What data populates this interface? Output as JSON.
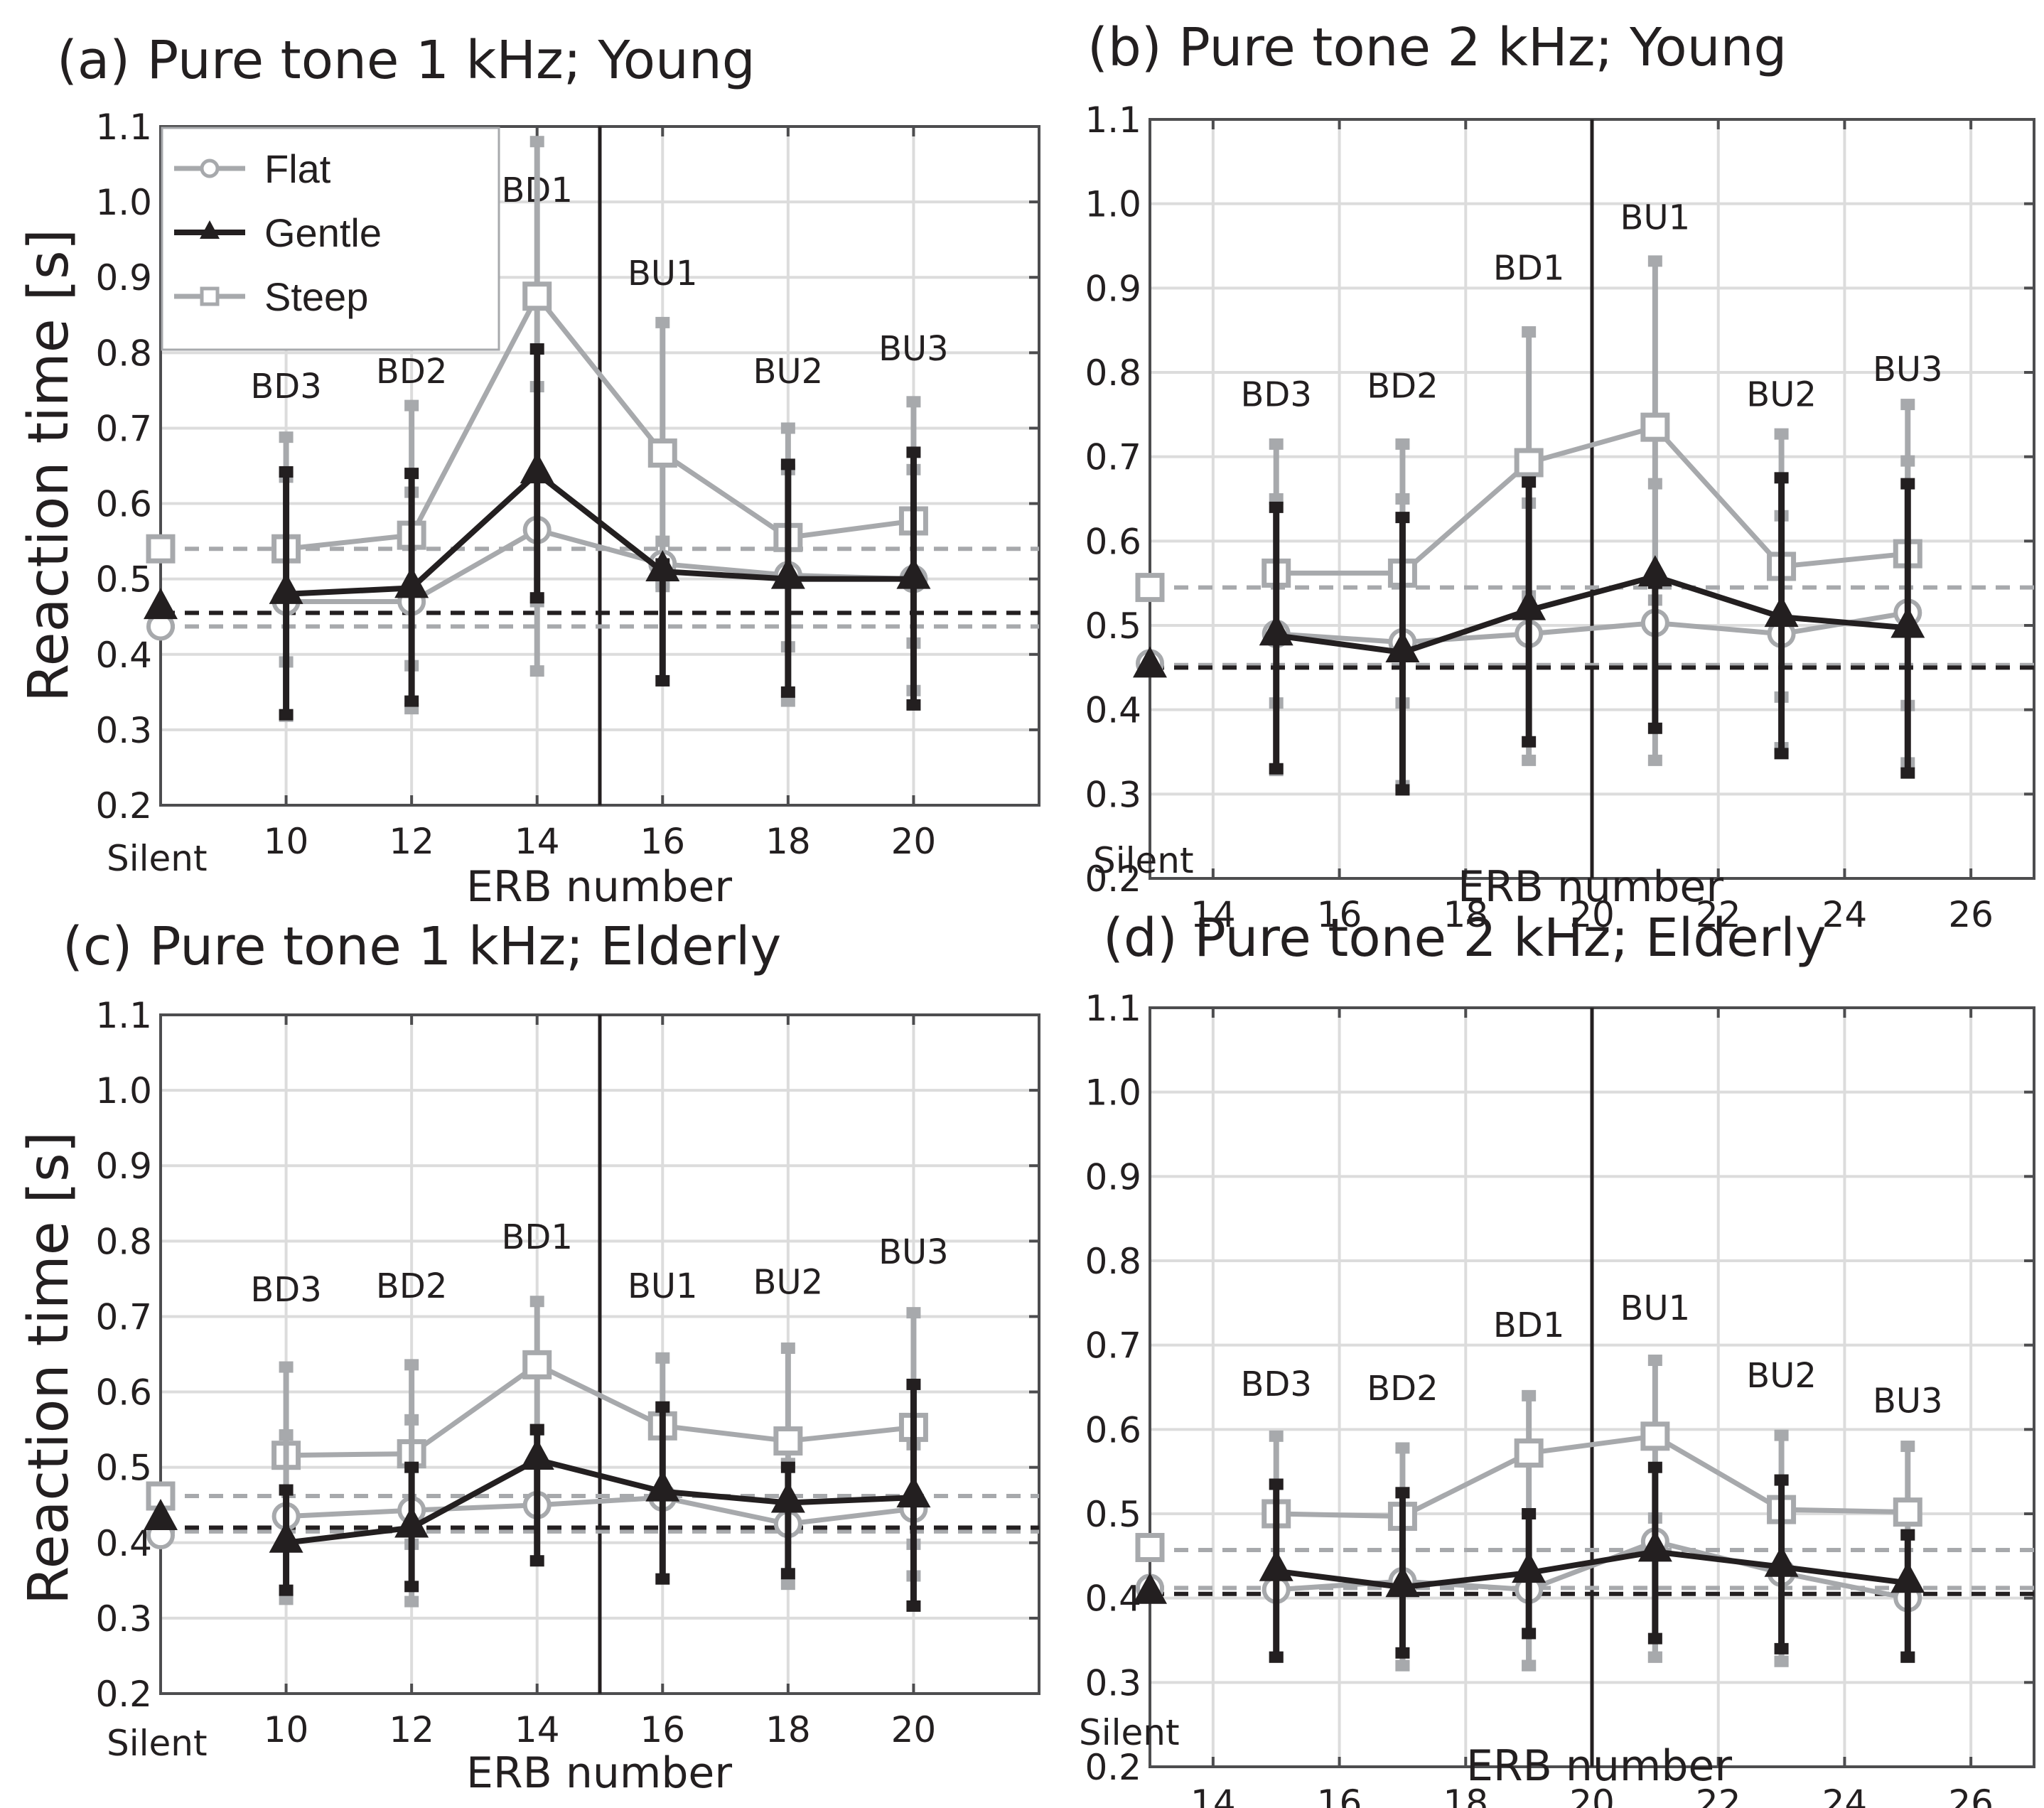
{
  "figure": {
    "ylabel": "Reaction time [s]",
    "xlabel": "ERB  number",
    "legend": [
      {
        "name": "Flat",
        "marker": "circle-open",
        "color": "#a7a9ac"
      },
      {
        "name": "Gentle",
        "marker": "triangle-filled",
        "color": "#231f20"
      },
      {
        "name": "Steep",
        "marker": "square-open",
        "color": "#a7a9ac"
      }
    ],
    "colors": {
      "gray": "#a7a9ac",
      "black": "#231f20",
      "grid": "#dcdcdc",
      "axis": "#4d4d4f"
    }
  },
  "chart_data": [
    {
      "id": "a",
      "type": "line",
      "title": "(a) Pure tone 1 kHz; Young",
      "xlabel": "ERB  number",
      "ylabel": "Reaction time [s]",
      "silent_label": "Silent",
      "xlim": [
        8,
        22
      ],
      "ylim": [
        0.2,
        1.1
      ],
      "xticks": [
        10,
        12,
        14,
        16,
        18,
        20
      ],
      "yticks": [
        "0.2",
        "0.3",
        "0.4",
        "0.5",
        "0.6",
        "0.7",
        "0.8",
        "0.9",
        "1.0",
        "1.1"
      ],
      "divider_x": 15,
      "grid": true,
      "legend": "top-left",
      "x": [
        8,
        10,
        12,
        14,
        16,
        18,
        20
      ],
      "annotations": [
        {
          "text": "BD3",
          "x": 10,
          "y": 0.74
        },
        {
          "text": "BD2",
          "x": 12,
          "y": 0.76
        },
        {
          "text": "BD1",
          "x": 14,
          "y": 1.0
        },
        {
          "text": "BU1",
          "x": 16,
          "y": 0.89
        },
        {
          "text": "BU2",
          "x": 18,
          "y": 0.76
        },
        {
          "text": "BU3",
          "x": 20,
          "y": 0.79
        }
      ],
      "series": [
        {
          "name": "Flat",
          "values": [
            0.437,
            0.47,
            0.47,
            0.565,
            0.52,
            0.505,
            0.5
          ],
          "lower": [
            null,
            0.39,
            0.385,
            0.47,
            0.49,
            0.41,
            0.415
          ],
          "upper": [
            null,
            0.635,
            0.615,
            0.755,
            0.55,
            0.645,
            0.645
          ],
          "baseline": 0.437
        },
        {
          "name": "Gentle",
          "values": [
            0.46,
            0.48,
            0.488,
            0.64,
            0.51,
            0.5,
            0.5
          ],
          "lower": [
            null,
            0.32,
            0.338,
            0.475,
            0.365,
            0.35,
            0.333
          ],
          "upper": [
            null,
            0.642,
            0.64,
            0.805,
            0.52,
            0.652,
            0.668
          ],
          "baseline": 0.455
        },
        {
          "name": "Steep",
          "values": [
            0.54,
            0.54,
            0.558,
            0.875,
            0.667,
            0.555,
            0.577
          ],
          "lower": [
            null,
            0.318,
            0.328,
            0.378,
            0.495,
            0.338,
            0.352
          ],
          "upper": [
            null,
            0.688,
            0.73,
            1.08,
            0.84,
            0.7,
            0.735
          ],
          "baseline": 0.54
        }
      ]
    },
    {
      "id": "b",
      "type": "line",
      "title": "(b) Pure tone 2 kHz; Young",
      "xlabel": "ERB  number",
      "ylabel": "",
      "silent_label": "Silent",
      "xlim": [
        13,
        27
      ],
      "ylim": [
        0.2,
        1.1
      ],
      "xticks": [
        14,
        16,
        18,
        20,
        22,
        24,
        26
      ],
      "yticks": [
        "0.2",
        "0.3",
        "0.4",
        "0.5",
        "0.6",
        "0.7",
        "0.8",
        "0.9",
        "1.0",
        "1.1"
      ],
      "divider_x": 20,
      "grid": true,
      "x": [
        13,
        15,
        17,
        19,
        21,
        23,
        25
      ],
      "annotations": [
        {
          "text": "BD3",
          "x": 15,
          "y": 0.76
        },
        {
          "text": "BD2",
          "x": 17,
          "y": 0.77
        },
        {
          "text": "BD1",
          "x": 19,
          "y": 0.91
        },
        {
          "text": "BU1",
          "x": 21,
          "y": 0.97
        },
        {
          "text": "BU2",
          "x": 23,
          "y": 0.76
        },
        {
          "text": "BU3",
          "x": 25,
          "y": 0.79
        }
      ],
      "series": [
        {
          "name": "Flat",
          "values": [
            0.455,
            0.49,
            0.48,
            0.49,
            0.503,
            0.49,
            0.515
          ],
          "lower": [
            null,
            0.408,
            0.408,
            0.535,
            0.53,
            0.415,
            0.405
          ],
          "upper": [
            null,
            0.65,
            0.65,
            0.645,
            0.668,
            0.63,
            0.695
          ],
          "baseline": 0.453
        },
        {
          "name": "Gentle",
          "values": [
            0.45,
            0.488,
            0.468,
            0.518,
            0.558,
            0.51,
            0.497
          ],
          "lower": [
            null,
            0.33,
            0.305,
            0.362,
            0.378,
            0.348,
            0.325
          ],
          "upper": [
            null,
            0.64,
            0.628,
            0.67,
            0.55,
            0.675,
            0.668
          ],
          "baseline": 0.45
        },
        {
          "name": "Steep",
          "values": [
            0.545,
            0.562,
            0.562,
            0.693,
            0.735,
            0.57,
            0.585
          ],
          "lower": [
            null,
            0.328,
            0.31,
            0.34,
            0.34,
            0.355,
            0.337
          ],
          "upper": [
            null,
            0.715,
            0.715,
            0.848,
            0.932,
            0.727,
            0.762
          ],
          "baseline": 0.545
        }
      ]
    },
    {
      "id": "c",
      "type": "line",
      "title": "(c) Pure tone 1 kHz; Elderly",
      "xlabel": "ERB  number",
      "ylabel": "Reaction time [s]",
      "silent_label": "Silent",
      "xlim": [
        8,
        22
      ],
      "ylim": [
        0.2,
        1.1
      ],
      "xticks": [
        10,
        12,
        14,
        16,
        18,
        20
      ],
      "yticks": [
        "0.2",
        "0.3",
        "0.4",
        "0.5",
        "0.6",
        "0.7",
        "0.8",
        "0.9",
        "1.0",
        "1.1"
      ],
      "divider_x": 15,
      "grid": true,
      "x": [
        8,
        10,
        12,
        14,
        16,
        18,
        20
      ],
      "annotations": [
        {
          "text": "BD3",
          "x": 10,
          "y": 0.72
        },
        {
          "text": "BD2",
          "x": 12,
          "y": 0.725
        },
        {
          "text": "BD1",
          "x": 14,
          "y": 0.79
        },
        {
          "text": "BU1",
          "x": 16,
          "y": 0.725
        },
        {
          "text": "BU2",
          "x": 18,
          "y": 0.73
        },
        {
          "text": "BU3",
          "x": 20,
          "y": 0.77
        }
      ],
      "series": [
        {
          "name": "Flat",
          "values": [
            0.41,
            0.435,
            0.443,
            0.45,
            0.46,
            0.425,
            0.445
          ],
          "lower": [
            null,
            0.4,
            0.398,
            0.55,
            0.465,
            0.505,
            0.398
          ],
          "upper": [
            null,
            0.543,
            0.563,
            0.55,
            0.58,
            0.505,
            0.53
          ],
          "baseline": 0.415
        },
        {
          "name": "Gentle",
          "values": [
            0.43,
            0.4,
            0.42,
            0.51,
            0.468,
            0.453,
            0.46
          ],
          "lower": [
            null,
            0.337,
            0.342,
            0.376,
            0.352,
            0.359,
            0.316
          ],
          "upper": [
            null,
            0.47,
            0.5,
            0.55,
            0.58,
            0.5,
            0.61
          ],
          "baseline": 0.42
        },
        {
          "name": "Steep",
          "values": [
            0.462,
            0.516,
            0.518,
            0.636,
            0.555,
            0.535,
            0.553
          ],
          "lower": [
            null,
            0.325,
            0.322,
            0.55,
            0.465,
            0.345,
            0.356
          ],
          "upper": [
            null,
            0.633,
            0.636,
            0.72,
            0.645,
            0.658,
            0.705
          ],
          "baseline": 0.462
        }
      ]
    },
    {
      "id": "d",
      "type": "line",
      "title": "(d) Pure tone 2 kHz; Elderly",
      "xlabel": "ERB  number",
      "ylabel": "",
      "silent_label": "Silent",
      "xlim": [
        13,
        27
      ],
      "ylim": [
        0.2,
        1.1
      ],
      "xticks": [
        14,
        16,
        18,
        20,
        22,
        24,
        26
      ],
      "yticks": [
        "0.2",
        "0.3",
        "0.4",
        "0.5",
        "0.6",
        "0.7",
        "0.8",
        "0.9",
        "1.0",
        "1.1"
      ],
      "divider_x": 20,
      "grid": true,
      "x": [
        13,
        15,
        17,
        19,
        21,
        23,
        25
      ],
      "annotations": [
        {
          "text": "BD3",
          "x": 15,
          "y": 0.64
        },
        {
          "text": "BD2",
          "x": 17,
          "y": 0.635
        },
        {
          "text": "BD1",
          "x": 19,
          "y": 0.71
        },
        {
          "text": "BU1",
          "x": 21,
          "y": 0.73
        },
        {
          "text": "BU2",
          "x": 23,
          "y": 0.65
        },
        {
          "text": "BU3",
          "x": 25,
          "y": 0.62
        }
      ],
      "series": [
        {
          "name": "Flat",
          "values": [
            0.412,
            0.41,
            0.42,
            0.41,
            0.467,
            0.43,
            0.4
          ],
          "lower": [
            null,
            0.33,
            0.32,
            0.32,
            0.33,
            0.325,
            0.33
          ],
          "upper": [
            null,
            0.535,
            0.525,
            0.5,
            0.495,
            0.54,
            0.475
          ],
          "baseline": 0.412
        },
        {
          "name": "Gentle",
          "values": [
            0.405,
            0.432,
            0.413,
            0.43,
            0.455,
            0.437,
            0.418
          ],
          "lower": [
            null,
            0.33,
            0.335,
            0.358,
            0.352,
            0.34,
            0.33
          ],
          "upper": [
            null,
            0.535,
            0.525,
            0.5,
            0.555,
            0.54,
            0.475
          ],
          "baseline": 0.405
        },
        {
          "name": "Steep",
          "values": [
            0.46,
            0.5,
            0.497,
            0.572,
            0.592,
            0.505,
            0.502
          ],
          "lower": [
            null,
            0.33,
            0.32,
            0.32,
            0.33,
            0.325,
            0.33
          ],
          "upper": [
            null,
            0.592,
            0.578,
            0.64,
            0.682,
            0.593,
            0.58
          ],
          "baseline": 0.457
        }
      ]
    }
  ]
}
